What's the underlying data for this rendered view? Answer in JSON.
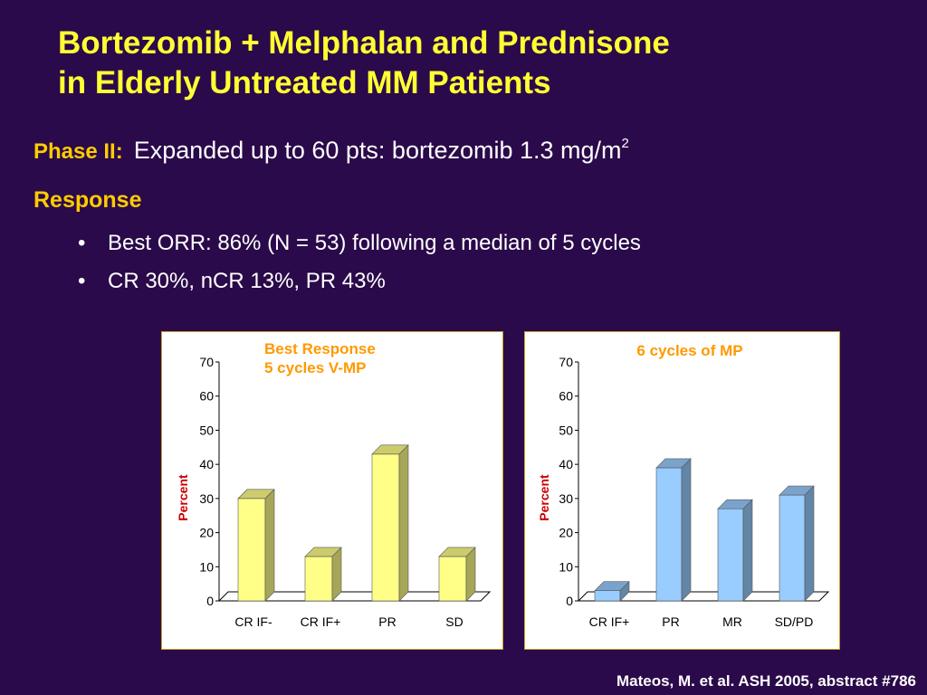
{
  "slide": {
    "title_line1": "Bortezomib + Melphalan and Prednisone",
    "title_line2": "in Elderly Untreated MM Patients",
    "phase_label": "Phase II:",
    "phase_text": "Expanded up to 60 pts: bortezomib 1.3 mg/m",
    "phase_sup": "2",
    "response_heading": "Response",
    "bullet_marker": "•",
    "bullets": [
      "Best ORR: 86% (N = 53)  following a median of 5 cycles",
      "CR 30%, nCR 13%,  PR 43%"
    ],
    "citation": "Mateos, M. et al. ASH 2005,  abstract #786"
  },
  "colors": {
    "background": "#2a0a4a",
    "title": "#ffff33",
    "label": "#ffcc00",
    "chart_title": "#ff9900",
    "bar_left": "#ffff88",
    "bar_right": "#99ccff",
    "panel_border": "#c9a227"
  },
  "chart_data": [
    {
      "type": "bar",
      "title": "Best Response\n5 cycles V-MP",
      "ylabel": "Percent",
      "categories": [
        "CR IF-",
        "CR IF+",
        "PR",
        "SD"
      ],
      "values": [
        30,
        13,
        43,
        13
      ],
      "ylim": [
        0,
        70
      ],
      "yticks": [
        0,
        10,
        20,
        30,
        40,
        50,
        60,
        70
      ],
      "bar_color": "#ffff88",
      "grid": false,
      "legend": "none"
    },
    {
      "type": "bar",
      "title": "6 cycles of MP",
      "ylabel": "Percent",
      "categories": [
        "CR IF+",
        "PR",
        "MR",
        "SD/PD"
      ],
      "values": [
        3,
        39,
        27,
        31
      ],
      "ylim": [
        0,
        70
      ],
      "yticks": [
        0,
        10,
        20,
        30,
        40,
        50,
        60,
        70
      ],
      "bar_color": "#99ccff",
      "grid": false,
      "legend": "none"
    }
  ]
}
